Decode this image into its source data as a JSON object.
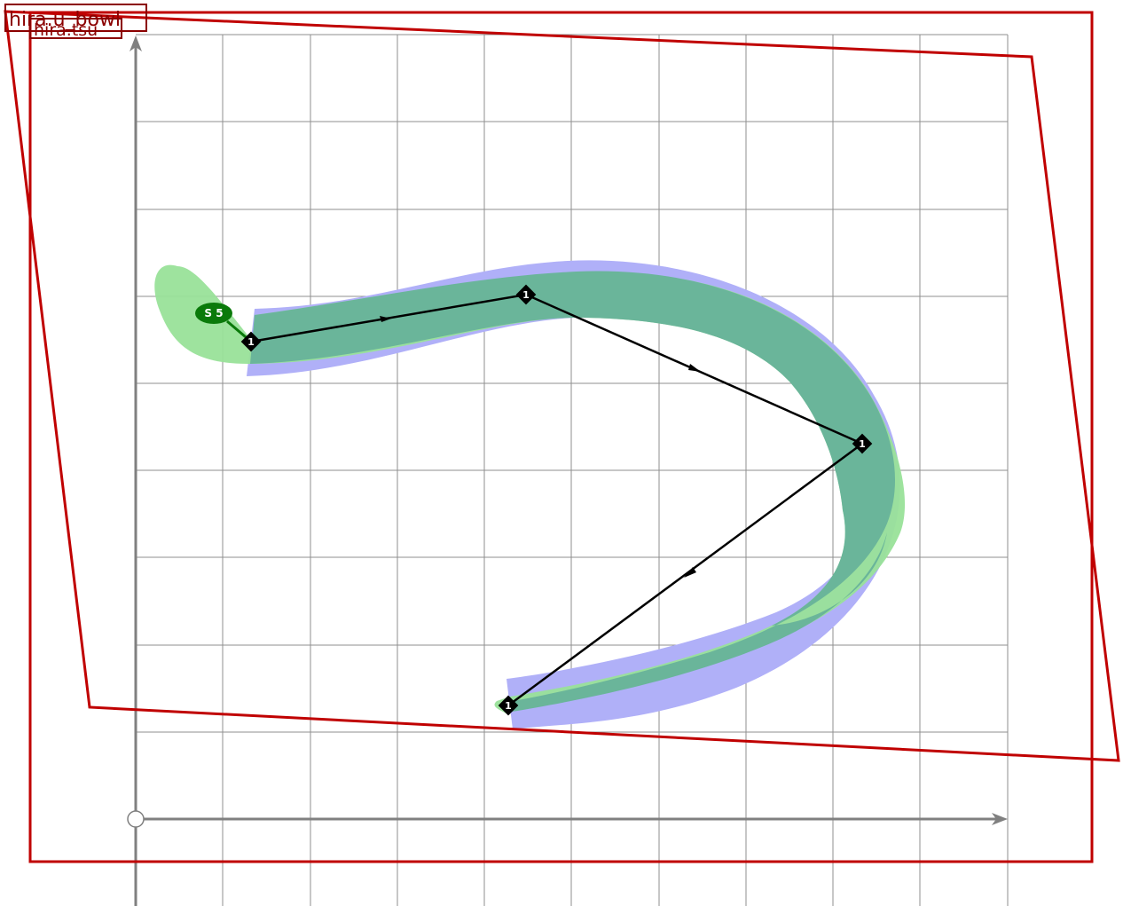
{
  "labels": {
    "outer_box": "hira.u_bowl",
    "inner_box": "hira.tsu"
  },
  "stroke_tag": "S 5",
  "nodes": [
    "1",
    "1",
    "1",
    "1"
  ],
  "colors": {
    "grid": "#8f8f8f",
    "axis": "#808080",
    "box": "#c00000",
    "label_text": "#8b0000",
    "band_blue": "#b0b0f8",
    "band_green": "#99e199",
    "band_overlap": "#6ab59a",
    "tag": "#0a7a0a",
    "path": "#000000"
  }
}
